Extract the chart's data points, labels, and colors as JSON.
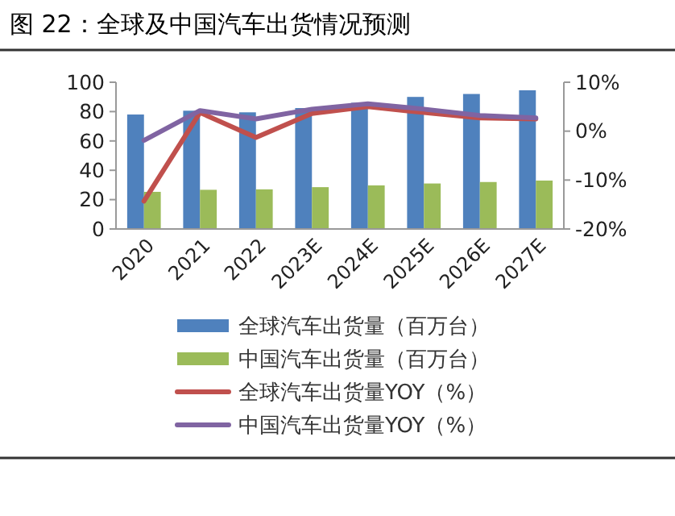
{
  "chart_data": {
    "type": "bar",
    "title": "图 22：全球及中国汽车出货情况预测",
    "categories": [
      "2020",
      "2021",
      "2022",
      "2023E",
      "2024E",
      "2025E",
      "2026E",
      "2027E"
    ],
    "series": [
      {
        "name": "全球汽车出货量（百万台）",
        "color": "#4f81bd",
        "values": [
          78,
          80.6,
          79.5,
          82.4,
          86,
          90,
          92,
          94.5
        ]
      },
      {
        "name": "中国汽车出货量（百万台）",
        "color": "#9bbb59",
        "values": [
          25.3,
          26.7,
          27,
          28.5,
          29.7,
          31,
          32,
          33
        ]
      },
      {
        "name": "全球汽车出货量YOY（%）",
        "type": "line",
        "axis": "y2",
        "color": "#c0504d",
        "values": [
          -14.3,
          3.8,
          -1.3,
          3.6,
          5,
          3.8,
          2.7,
          2.5
        ]
      },
      {
        "name": "中国汽车出货量YOY（%）",
        "type": "line",
        "axis": "y2",
        "color": "#8064a2",
        "values": [
          -1.9,
          4.2,
          2.5,
          4.5,
          5.6,
          4.5,
          3.2,
          2.7
        ]
      }
    ],
    "ylim": [
      0,
      100
    ],
    "yticks": [
      0,
      20,
      40,
      60,
      80,
      100
    ],
    "y2lim": [
      -20,
      10
    ],
    "y2ticks": [
      {
        "value": -20,
        "label": "-20%"
      },
      {
        "value": -10,
        "label": "-10%"
      },
      {
        "value": 0,
        "label": "0%"
      },
      {
        "value": 10,
        "label": "10%"
      }
    ],
    "grid": false,
    "legend": "bottom",
    "marker": "none",
    "line_style": "solid"
  }
}
